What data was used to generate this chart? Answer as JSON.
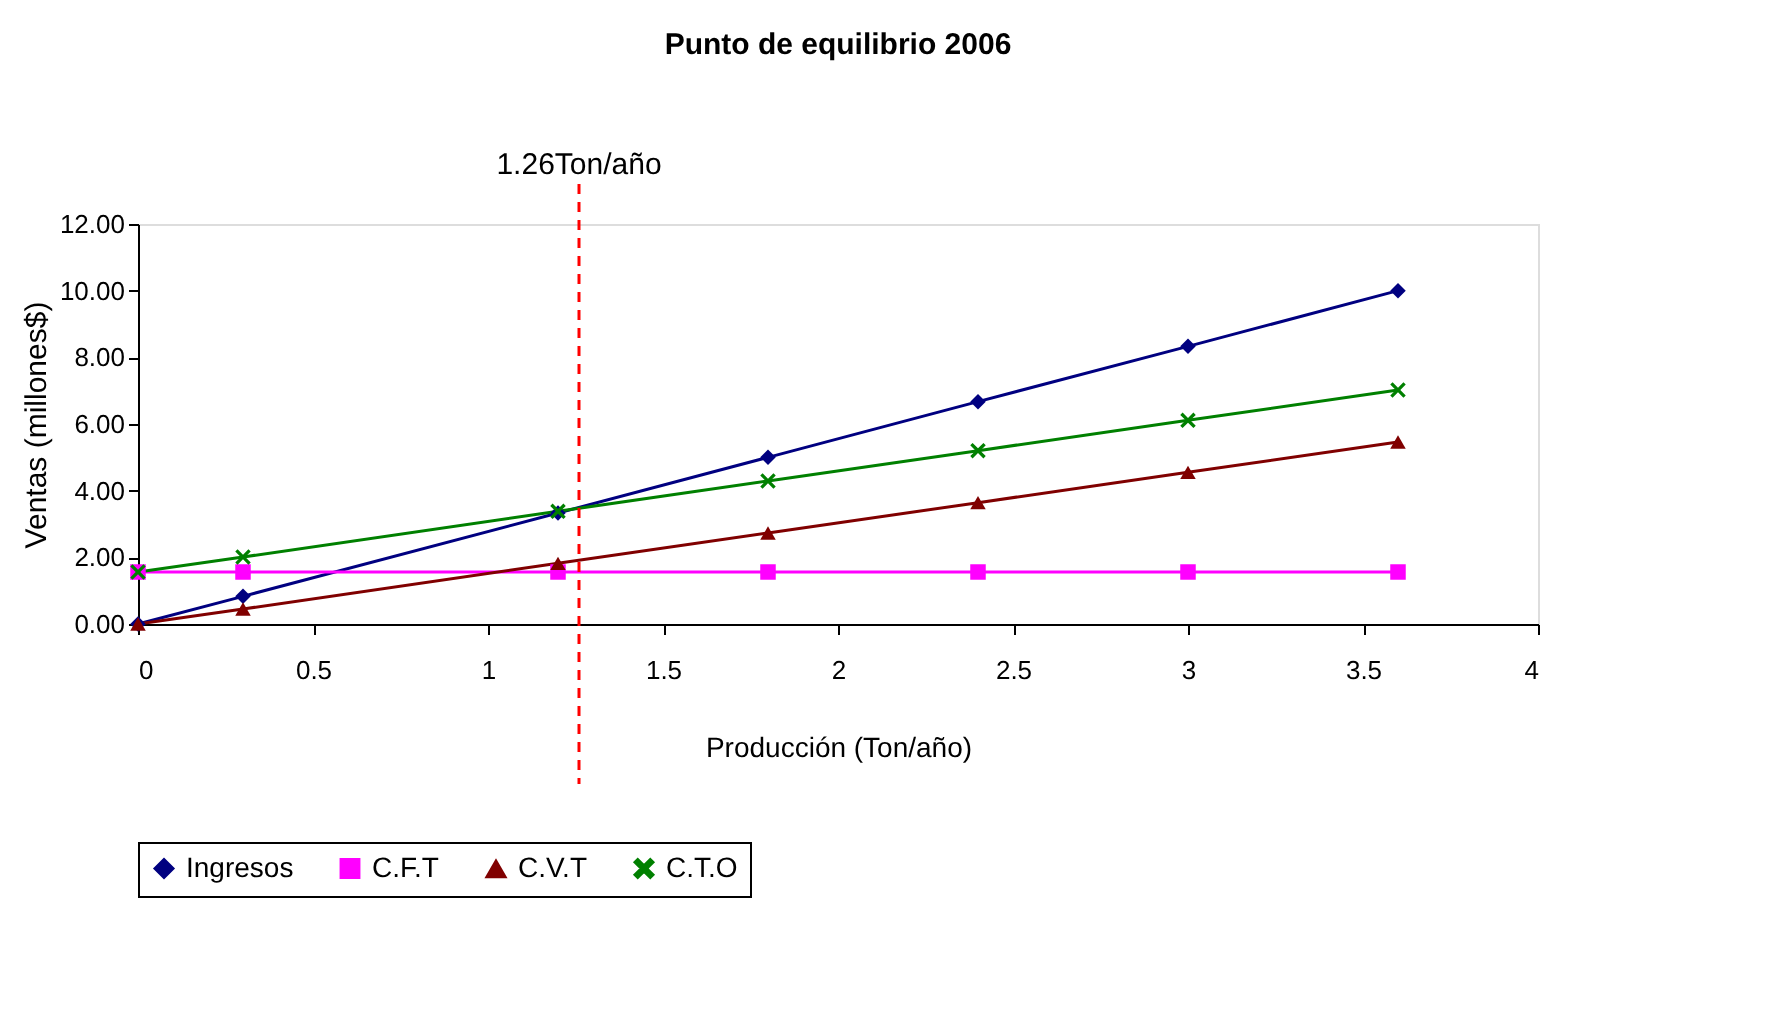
{
  "chart_data": {
    "type": "line",
    "title": "Punto de equilibrio 2006",
    "xlabel": "Producción (Ton/año)",
    "ylabel": "Ventas (millones$)",
    "x": [
      0,
      0.3,
      1.2,
      1.8,
      2.4,
      3.0,
      3.6
    ],
    "series": [
      {
        "name": "Ingresos",
        "color": "#000080",
        "marker": "diamond",
        "values": [
          0,
          0.83,
          3.33,
          5.0,
          6.67,
          8.33,
          10.0
        ]
      },
      {
        "name": "C.F.T",
        "color": "#ff00ff",
        "marker": "square",
        "values": [
          1.56,
          1.56,
          1.56,
          1.56,
          1.56,
          1.56,
          1.56
        ]
      },
      {
        "name": "C.V.T",
        "color": "#800000",
        "marker": "triangle",
        "values": [
          0,
          0.45,
          1.82,
          2.73,
          3.64,
          4.55,
          5.46
        ]
      },
      {
        "name": "C.T.O",
        "color": "#008000",
        "marker": "cross",
        "values": [
          1.56,
          2.01,
          3.38,
          4.29,
          5.2,
          6.11,
          7.02
        ]
      }
    ],
    "xlim": [
      0,
      4
    ],
    "xticks": [
      0,
      0.5,
      1,
      1.5,
      2,
      2.5,
      3,
      3.5,
      4
    ],
    "ylim": [
      0,
      12
    ],
    "yticks": [
      {
        "value": 0,
        "label": "0.00"
      },
      {
        "value": 2,
        "label": "2.00"
      },
      {
        "value": 4,
        "label": "4.00"
      },
      {
        "value": 6,
        "label": "6.00"
      },
      {
        "value": 8,
        "label": "8.00"
      },
      {
        "value": 10,
        "label": "10.00"
      },
      {
        "value": 12,
        "label": "12.00"
      }
    ],
    "ref_lines": [
      {
        "axis": "x",
        "value": 1.26,
        "label": "1.26Ton/año",
        "color": "#ff0000",
        "line_style": "dashed"
      }
    ],
    "grid": false,
    "legend": "bottom"
  }
}
